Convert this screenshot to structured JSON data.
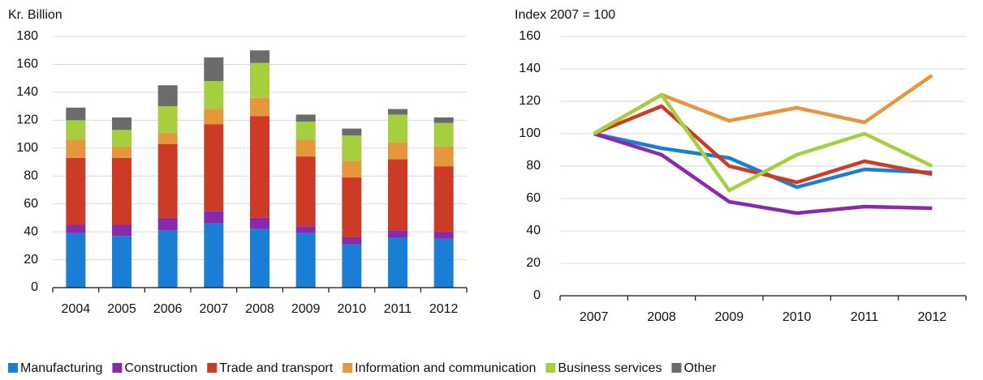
{
  "chart_data": [
    {
      "type": "stacked-bar",
      "y_label": "Kr. Billion",
      "categories": [
        "2004",
        "2005",
        "2006",
        "2007",
        "2008",
        "2009",
        "2010",
        "2011",
        "2012"
      ],
      "ylim": [
        0,
        180
      ],
      "yticks": [
        0,
        20,
        40,
        60,
        80,
        100,
        120,
        140,
        160,
        180
      ],
      "grid": true,
      "series": [
        {
          "name": "Manufacturing",
          "color": "#1a7fd4",
          "values": [
            39,
            37,
            41,
            46,
            42,
            39,
            31,
            36,
            35
          ]
        },
        {
          "name": "Construction",
          "color": "#8b2aa8",
          "values": [
            6,
            8,
            9,
            9,
            8,
            5,
            5,
            5,
            5
          ]
        },
        {
          "name": "Trade and transport",
          "color": "#cc3b26",
          "values": [
            48,
            48,
            53,
            62,
            73,
            50,
            43,
            51,
            47
          ]
        },
        {
          "name": "Information and communication",
          "color": "#e5973e",
          "values": [
            13,
            8,
            8,
            11,
            13,
            12,
            12,
            12,
            14
          ]
        },
        {
          "name": "Business services",
          "color": "#a6cf3f",
          "values": [
            14,
            12,
            19,
            20,
            25,
            13,
            18,
            20,
            17
          ]
        },
        {
          "name": "Other",
          "color": "#6b6b6b",
          "values": [
            9,
            9,
            15,
            17,
            9,
            5,
            5,
            4,
            4
          ]
        }
      ]
    },
    {
      "type": "line",
      "y_label": "Index 2007 = 100",
      "categories": [
        "2007",
        "2008",
        "2009",
        "2010",
        "2011",
        "2012"
      ],
      "ylim": [
        0,
        160
      ],
      "yticks": [
        0,
        20,
        40,
        60,
        80,
        100,
        120,
        140,
        160
      ],
      "grid": true,
      "series": [
        {
          "name": "Manufacturing",
          "color": "#1a7fd4",
          "values": [
            100,
            91,
            85,
            67,
            78,
            76
          ]
        },
        {
          "name": "Construction",
          "color": "#8b2aa8",
          "values": [
            100,
            87,
            58,
            51,
            55,
            54
          ]
        },
        {
          "name": "Trade and transport",
          "color": "#cc3b26",
          "values": [
            100,
            117,
            80,
            70,
            83,
            75
          ]
        },
        {
          "name": "Information and communication",
          "color": "#e5973e",
          "values": [
            100,
            124,
            108,
            116,
            107,
            136
          ]
        },
        {
          "name": "Business services",
          "color": "#a6cf3f",
          "values": [
            100,
            124,
            65,
            87,
            100,
            80
          ]
        }
      ]
    }
  ]
}
